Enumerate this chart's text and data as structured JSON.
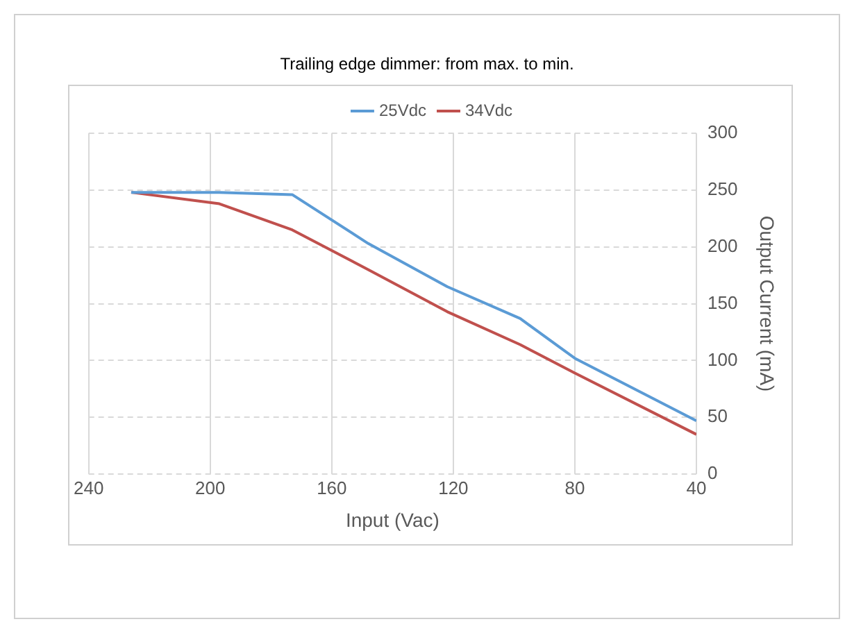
{
  "chart_data": {
    "type": "line",
    "title": "Trailing edge dimmer: from max. to min.",
    "xlabel": "Input (Vac)",
    "ylabel": "Output Current (mA)",
    "x": [
      226,
      197,
      173,
      148,
      122,
      98,
      80,
      40
    ],
    "series": [
      {
        "name": "25Vdc",
        "color": "#5b9bd5",
        "values": [
          248,
          248,
          246,
          203,
          165,
          137,
          102,
          47
        ]
      },
      {
        "name": "34Vdc",
        "color": "#c0504d",
        "values": [
          248,
          238,
          215,
          180,
          143,
          114,
          89,
          35
        ]
      }
    ],
    "xlim": [
      240,
      40
    ],
    "xticks": [
      240,
      200,
      160,
      120,
      80,
      40
    ],
    "ylim": [
      0,
      300
    ],
    "yticks": [
      0,
      50,
      100,
      150,
      200,
      250,
      300
    ],
    "grid": true,
    "legend": "top",
    "marker": "none",
    "line_style": "solid"
  }
}
